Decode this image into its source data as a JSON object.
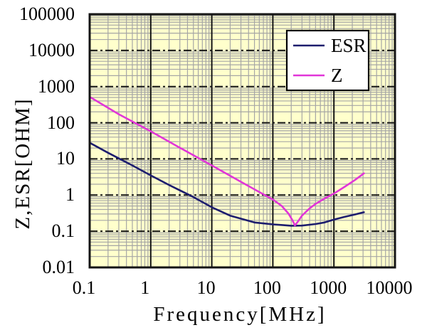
{
  "chart_data": {
    "type": "line",
    "title": "",
    "xlabel": "Frequency[MHz]",
    "ylabel": "Z,ESR[OHM]",
    "xscale": "log",
    "yscale": "log",
    "xlim": [
      0.1,
      10000
    ],
    "ylim": [
      0.01,
      100000
    ],
    "xticks": [
      0.1,
      1,
      10,
      100,
      1000,
      10000
    ],
    "xtick_labels": [
      "0.1",
      "1",
      "10",
      "100",
      "1000",
      "10000"
    ],
    "yticks": [
      0.01,
      0.1,
      1,
      10,
      100,
      1000,
      10000,
      100000
    ],
    "ytick_labels": [
      "0.01",
      "0.1",
      "1",
      "10",
      "100",
      "1000",
      "10000",
      "100000"
    ],
    "grid": {
      "major": true,
      "minor": true,
      "major_style": "horizontal dash-dot, vertical solid"
    },
    "legend": {
      "position": "top-right",
      "entries": [
        "ESR",
        "Z"
      ]
    },
    "series": [
      {
        "name": "ESR",
        "color": "#1d1d6e",
        "points": [
          [
            0.1,
            28
          ],
          [
            0.2,
            14.8
          ],
          [
            0.5,
            6.6
          ],
          [
            1,
            3.5
          ],
          [
            2,
            1.9
          ],
          [
            5,
            0.88
          ],
          [
            10,
            0.46
          ],
          [
            20,
            0.27
          ],
          [
            50,
            0.175
          ],
          [
            100,
            0.155
          ],
          [
            150,
            0.147
          ],
          [
            200,
            0.142
          ],
          [
            300,
            0.143
          ],
          [
            500,
            0.158
          ],
          [
            700,
            0.175
          ],
          [
            1000,
            0.21
          ],
          [
            1500,
            0.25
          ],
          [
            2200,
            0.29
          ],
          [
            3100,
            0.335
          ]
        ]
      },
      {
        "name": "Z",
        "color": "#e135d8",
        "points": [
          [
            0.1,
            520
          ],
          [
            0.3,
            172
          ],
          [
            1,
            58
          ],
          [
            3,
            20.4
          ],
          [
            10,
            6.6
          ],
          [
            30,
            2.33
          ],
          [
            100,
            0.75
          ],
          [
            140,
            0.5
          ],
          [
            180,
            0.31
          ],
          [
            210,
            0.2
          ],
          [
            230,
            0.145
          ],
          [
            260,
            0.19
          ],
          [
            300,
            0.27
          ],
          [
            400,
            0.43
          ],
          [
            500,
            0.57
          ],
          [
            700,
            0.8
          ],
          [
            1000,
            1.1
          ],
          [
            1500,
            1.7
          ],
          [
            2200,
            2.6
          ],
          [
            3100,
            4.0
          ]
        ]
      }
    ],
    "annotations": {
      "resonance_min": {
        "frequency_mhz": 230,
        "impedance_ohm": 0.145
      }
    },
    "plot_background": "#ffffcc",
    "minor_grid_color": "#a6a6a6",
    "major_grid_color": "#141414",
    "border_color": "#141414",
    "legend_background": "#ffffff"
  }
}
